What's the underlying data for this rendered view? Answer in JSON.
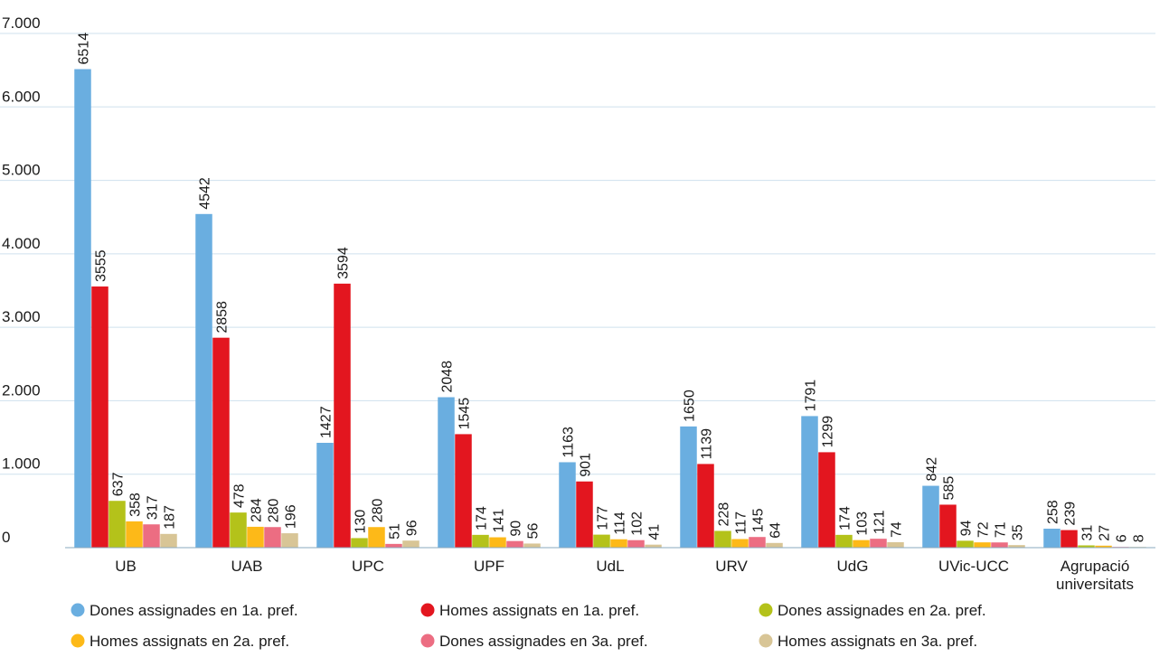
{
  "chart_data": {
    "type": "bar",
    "title": "",
    "xlabel": "",
    "ylabel": "",
    "ylim": [
      0,
      7000
    ],
    "yticks": [
      0,
      1000,
      2000,
      3000,
      4000,
      5000,
      6000,
      7000
    ],
    "ytick_labels": [
      "0",
      "1.000",
      "2.000",
      "3.000",
      "4.000",
      "5.000",
      "6.000",
      "7.000"
    ],
    "grid": true,
    "legend_position": "bottom",
    "categories": [
      [
        "UB"
      ],
      [
        "UAB"
      ],
      [
        "UPC"
      ],
      [
        "UPF"
      ],
      [
        "UdL"
      ],
      [
        "URV"
      ],
      [
        "UdG"
      ],
      [
        "UVic-UCC"
      ],
      [
        "Agrupació",
        "universitats"
      ]
    ],
    "series": [
      {
        "name": "Dones assignades en 1a. pref.",
        "color": "#6aaee0",
        "values": [
          6514,
          4542,
          1427,
          2048,
          1163,
          1650,
          1791,
          842,
          258
        ]
      },
      {
        "name": "Homes assignats en 1a. pref.",
        "color": "#e3161f",
        "values": [
          3555,
          2858,
          3594,
          1545,
          901,
          1139,
          1299,
          585,
          239
        ]
      },
      {
        "name": "Dones assignades en 2a. pref.",
        "color": "#b4c21a",
        "values": [
          637,
          478,
          130,
          174,
          177,
          228,
          174,
          94,
          31
        ]
      },
      {
        "name": "Homes assignats en 2a. pref.",
        "color": "#fdb918",
        "values": [
          358,
          284,
          280,
          141,
          114,
          117,
          103,
          72,
          27
        ]
      },
      {
        "name": "Dones assignades en 3a. pref.",
        "color": "#ec6d82",
        "values": [
          317,
          280,
          51,
          90,
          102,
          145,
          121,
          71,
          6
        ]
      },
      {
        "name": "Homes assignats en 3a. pref.",
        "color": "#d8c596",
        "values": [
          187,
          196,
          96,
          56,
          41,
          64,
          74,
          35,
          8
        ]
      }
    ]
  }
}
